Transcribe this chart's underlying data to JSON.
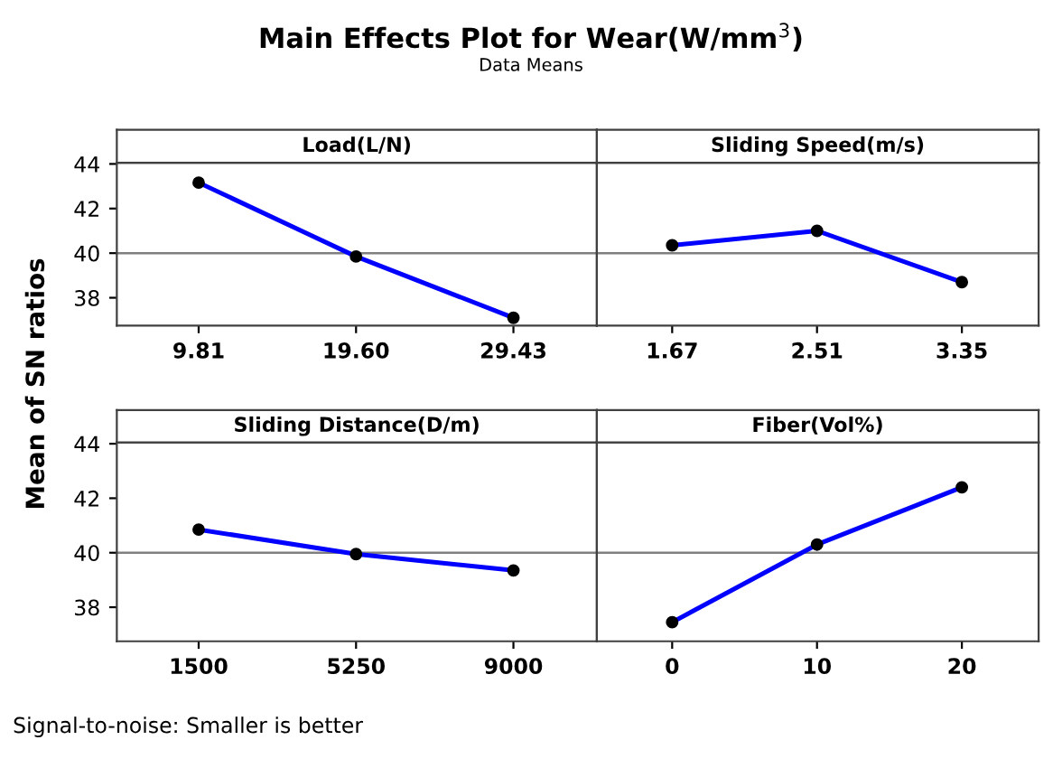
{
  "chart_data": [
    {
      "type": "other",
      "title": "Main Effects Plot for Wear(W/mm$^{3}$)",
      "subtitle": "Data Means",
      "ylabel": "Mean of SN ratios",
      "annotations": [
        "Signal-to-noise: Smaller is better"
      ]
    },
    {
      "type": "line",
      "title": "Load(L/N)",
      "categories": [
        "9.81",
        "19.60",
        "29.43"
      ],
      "series": [
        {
          "color": "#0000ff",
          "values": [
            43.16,
            39.85,
            37.1
          ]
        }
      ],
      "ylim": [
        36.75,
        44.05
      ],
      "yticks": [
        38,
        40,
        42,
        44
      ],
      "ref_lines": [
        {
          "axis": "y",
          "value": 40
        }
      ],
      "marker": "circle",
      "legend": false
    },
    {
      "type": "line",
      "title": "Sliding Speed(m/s)",
      "categories": [
        "1.67",
        "2.51",
        "3.35"
      ],
      "series": [
        {
          "color": "#0000ff",
          "values": [
            40.35,
            41.0,
            38.7
          ]
        }
      ],
      "ylim": [
        36.75,
        44.05
      ],
      "yticks": [
        38,
        40,
        42,
        44
      ],
      "ref_lines": [
        {
          "axis": "y",
          "value": 40
        }
      ],
      "marker": "circle",
      "tick_labels": "x",
      "legend": false
    },
    {
      "type": "line",
      "title": "Sliding Distance(D/m)",
      "categories": [
        "1500",
        "5250",
        "9000"
      ],
      "series": [
        {
          "color": "#0000ff",
          "values": [
            40.85,
            39.95,
            39.35
          ]
        }
      ],
      "ylim": [
        36.75,
        44.05
      ],
      "yticks": [
        38,
        40,
        42,
        44
      ],
      "ref_lines": [
        {
          "axis": "y",
          "value": 40
        }
      ],
      "marker": "circle",
      "legend": false
    },
    {
      "type": "line",
      "title": "Fiber(Vol%)",
      "categories": [
        "0",
        "10",
        "20"
      ],
      "series": [
        {
          "color": "#0000ff",
          "values": [
            37.45,
            40.3,
            42.4
          ]
        }
      ],
      "ylim": [
        36.75,
        44.05
      ],
      "yticks": [
        38,
        40,
        42,
        44
      ],
      "ref_lines": [
        {
          "axis": "y",
          "value": 40
        }
      ],
      "marker": "circle",
      "tick_labels": "x",
      "legend": false
    }
  ]
}
